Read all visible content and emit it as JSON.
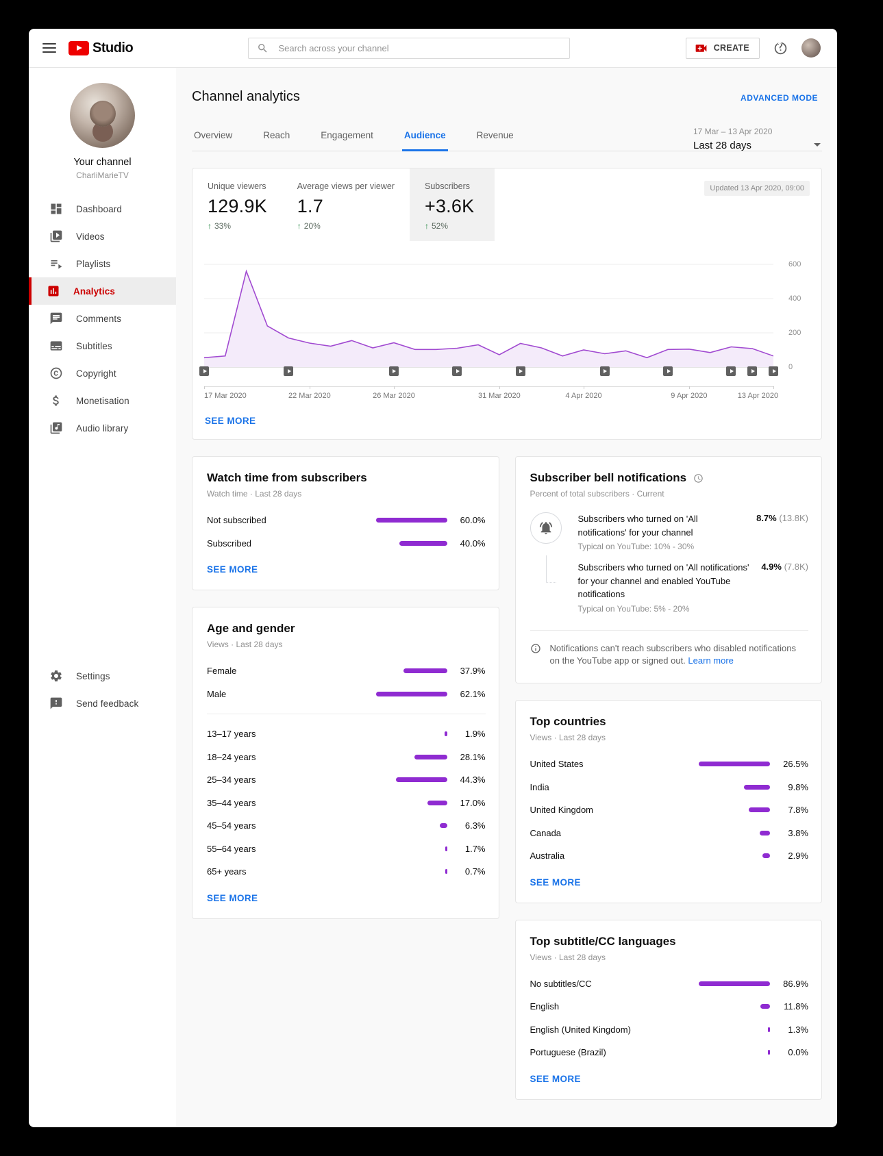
{
  "colors": {
    "accent_red": "#cc0000",
    "link_blue": "#1a73e8",
    "bar_purple": "#8f2bd1",
    "positive_green": "#188038",
    "line_purple": "#a14ad1",
    "area_fill": "#f4ebfa"
  },
  "topbar": {
    "logo_text": "Studio",
    "search_placeholder": "Search across your channel",
    "create_label": "CREATE"
  },
  "sidebar": {
    "channel_label": "Your channel",
    "channel_name": "CharliMarieTV",
    "items": [
      {
        "id": "dashboard",
        "label": "Dashboard",
        "icon": "dashboard-icon",
        "active": false
      },
      {
        "id": "videos",
        "label": "Videos",
        "icon": "videos-icon",
        "active": false
      },
      {
        "id": "playlists",
        "label": "Playlists",
        "icon": "playlists-icon",
        "active": false
      },
      {
        "id": "analytics",
        "label": "Analytics",
        "icon": "analytics-icon",
        "active": true
      },
      {
        "id": "comments",
        "label": "Comments",
        "icon": "comments-icon",
        "active": false
      },
      {
        "id": "subtitles",
        "label": "Subtitles",
        "icon": "subtitles-icon",
        "active": false
      },
      {
        "id": "copyright",
        "label": "Copyright",
        "icon": "copyright-icon",
        "active": false
      },
      {
        "id": "monetisation",
        "label": "Monetisation",
        "icon": "monetisation-icon",
        "active": false
      },
      {
        "id": "audio-library",
        "label": "Audio library",
        "icon": "audio-library-icon",
        "active": false
      }
    ],
    "footer_items": [
      {
        "id": "settings",
        "label": "Settings",
        "icon": "settings-icon"
      },
      {
        "id": "send-feedback",
        "label": "Send feedback",
        "icon": "feedback-icon"
      }
    ]
  },
  "header": {
    "title": "Channel analytics",
    "advanced_mode_label": "ADVANCED MODE",
    "tabs": [
      {
        "label": "Overview",
        "active": false
      },
      {
        "label": "Reach",
        "active": false
      },
      {
        "label": "Engagement",
        "active": false
      },
      {
        "label": "Audience",
        "active": true
      },
      {
        "label": "Revenue",
        "active": false
      }
    ],
    "date_range": "17 Mar – 13 Apr 2020",
    "date_preset": "Last 28 days"
  },
  "overview": {
    "metrics": [
      {
        "label": "Unique viewers",
        "value": "129.9K",
        "delta": "33%",
        "selected": false
      },
      {
        "label": "Average views per viewer",
        "value": "1.7",
        "delta": "20%",
        "selected": false
      },
      {
        "label": "Subscribers",
        "value": "+3.6K",
        "delta": "52%",
        "selected": true
      }
    ],
    "updated_badge": "Updated 13 Apr 2020, 09:00",
    "see_more_label": "SEE MORE"
  },
  "chart_data": {
    "type": "area",
    "x": [
      "17 Mar",
      "18 Mar",
      "19 Mar",
      "20 Mar",
      "21 Mar",
      "22 Mar",
      "23 Mar",
      "24 Mar",
      "25 Mar",
      "26 Mar",
      "27 Mar",
      "28 Mar",
      "29 Mar",
      "30 Mar",
      "31 Mar",
      "1 Apr",
      "2 Apr",
      "3 Apr",
      "4 Apr",
      "5 Apr",
      "6 Apr",
      "7 Apr",
      "8 Apr",
      "9 Apr",
      "10 Apr",
      "11 Apr",
      "12 Apr",
      "13 Apr"
    ],
    "values": [
      55,
      65,
      560,
      240,
      170,
      140,
      122,
      155,
      112,
      142,
      103,
      103,
      110,
      130,
      72,
      138,
      112,
      65,
      100,
      78,
      95,
      55,
      103,
      105,
      85,
      118,
      108,
      65
    ],
    "ylim": [
      0,
      600
    ],
    "yticks": [
      600,
      400,
      200,
      0
    ],
    "xticks": [
      {
        "day": 0,
        "label": "17 Mar 2020"
      },
      {
        "day": 5,
        "label": "22 Mar 2020"
      },
      {
        "day": 9,
        "label": "26 Mar 2020"
      },
      {
        "day": 14,
        "label": "31 Mar 2020"
      },
      {
        "day": 18,
        "label": "4 Apr 2020"
      },
      {
        "day": 23,
        "label": "9 Apr 2020"
      },
      {
        "day": 27,
        "label": "13 Apr 2020"
      }
    ],
    "video_marker_days": [
      0,
      4,
      9,
      12,
      15,
      19,
      22,
      25,
      26,
      27
    ],
    "grid": true,
    "legend": false
  },
  "watch_time_card": {
    "title": "Watch time from subscribers",
    "subtitle": "Watch time · Last 28 days",
    "rows": [
      {
        "label": "Not subscribed",
        "value": 60.0,
        "display": "60.0%"
      },
      {
        "label": "Subscribed",
        "value": 40.0,
        "display": "40.0%"
      }
    ],
    "see_more_label": "SEE MORE"
  },
  "bell_card": {
    "title": "Subscriber bell notifications",
    "subtitle": "Percent of total subscribers · Current",
    "rows": [
      {
        "text": "Subscribers who turned on 'All notifications' for your channel",
        "typical": "Typical on YouTube: 10% - 30%",
        "value": "8.7%",
        "count": "(13.8K)"
      },
      {
        "text": "Subscribers who turned on 'All notifications' for your channel and enabled YouTube notifications",
        "typical": "Typical on YouTube: 5% - 20%",
        "value": "4.9%",
        "count": "(7.8K)"
      }
    ],
    "note": "Notifications can't reach subscribers who disabled notifications on the YouTube app or signed out.",
    "learn_more_label": "Learn more"
  },
  "age_gender_card": {
    "title": "Age and gender",
    "subtitle": "Views · Last 28 days",
    "gender_rows": [
      {
        "label": "Female",
        "value": 37.9,
        "display": "37.9%"
      },
      {
        "label": "Male",
        "value": 62.1,
        "display": "62.1%"
      }
    ],
    "age_rows": [
      {
        "label": "13–17 years",
        "value": 1.9,
        "display": "1.9%"
      },
      {
        "label": "18–24 years",
        "value": 28.1,
        "display": "28.1%"
      },
      {
        "label": "25–34 years",
        "value": 44.3,
        "display": "44.3%"
      },
      {
        "label": "35–44 years",
        "value": 17.0,
        "display": "17.0%"
      },
      {
        "label": "45–54 years",
        "value": 6.3,
        "display": "6.3%"
      },
      {
        "label": "55–64 years",
        "value": 1.7,
        "display": "1.7%"
      },
      {
        "label": "65+ years",
        "value": 0.7,
        "display": "0.7%"
      }
    ],
    "see_more_label": "SEE MORE"
  },
  "countries_card": {
    "title": "Top countries",
    "subtitle": "Views · Last 28 days",
    "rows": [
      {
        "label": "United States",
        "value": 26.5,
        "display": "26.5%"
      },
      {
        "label": "India",
        "value": 9.8,
        "display": "9.8%"
      },
      {
        "label": "United Kingdom",
        "value": 7.8,
        "display": "7.8%"
      },
      {
        "label": "Canada",
        "value": 3.8,
        "display": "3.8%"
      },
      {
        "label": "Australia",
        "value": 2.9,
        "display": "2.9%"
      }
    ],
    "see_more_label": "SEE MORE"
  },
  "languages_card": {
    "title": "Top subtitle/CC languages",
    "subtitle": "Views · Last 28 days",
    "rows": [
      {
        "label": "No subtitles/CC",
        "value": 86.9,
        "display": "86.9%"
      },
      {
        "label": "English",
        "value": 11.8,
        "display": "11.8%"
      },
      {
        "label": "English (United Kingdom)",
        "value": 1.3,
        "display": "1.3%"
      },
      {
        "label": "Portuguese (Brazil)",
        "value": 0.0,
        "display": "0.0%"
      }
    ],
    "see_more_label": "SEE MORE"
  }
}
